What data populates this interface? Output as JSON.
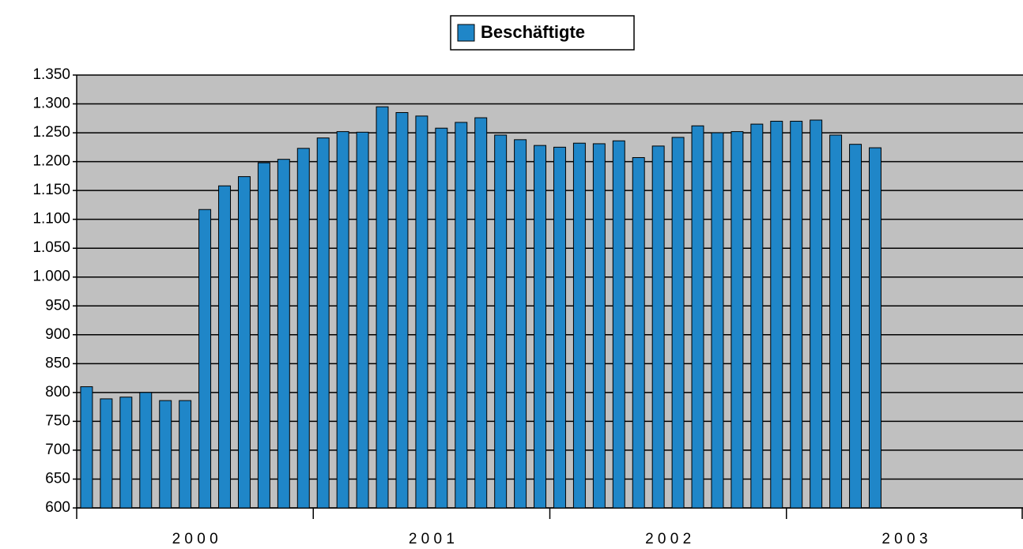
{
  "chart_data": {
    "type": "bar",
    "groups": [
      "2 0 0 0",
      "2 0 0 1",
      "2 0 0 2",
      "2 0 0 3"
    ],
    "series": [
      {
        "name": "Beschäftigte",
        "color": "#1f86c8",
        "values": [
          810,
          789,
          792,
          800,
          786,
          786,
          1117,
          1158,
          1174,
          1198,
          1204,
          1223,
          1241,
          1252,
          1251,
          1295,
          1285,
          1279,
          1258,
          1268,
          1276,
          1246,
          1238,
          1228,
          1225,
          1232,
          1231,
          1236,
          1207,
          1227,
          1242,
          1262,
          1250,
          1252,
          1265,
          1270,
          1270,
          1272,
          1246,
          1230,
          1224,
          null,
          null,
          null,
          null,
          null,
          null,
          null
        ]
      }
    ],
    "ylim": [
      600,
      1350
    ],
    "yticks": [
      600,
      650,
      700,
      750,
      800,
      850,
      900,
      950,
      {
        "value": 1000,
        "label": "1.000"
      },
      {
        "value": 1050,
        "label": "1.050"
      },
      {
        "value": 1100,
        "label": "1.100"
      },
      {
        "value": 1150,
        "label": "1.150"
      },
      {
        "value": 1200,
        "label": "1.200"
      },
      {
        "value": 1250,
        "label": "1.250"
      },
      {
        "value": 1300,
        "label": "1.300"
      },
      {
        "value": 1350,
        "label": "1.350"
      }
    ],
    "grid": true,
    "legend": "top"
  }
}
